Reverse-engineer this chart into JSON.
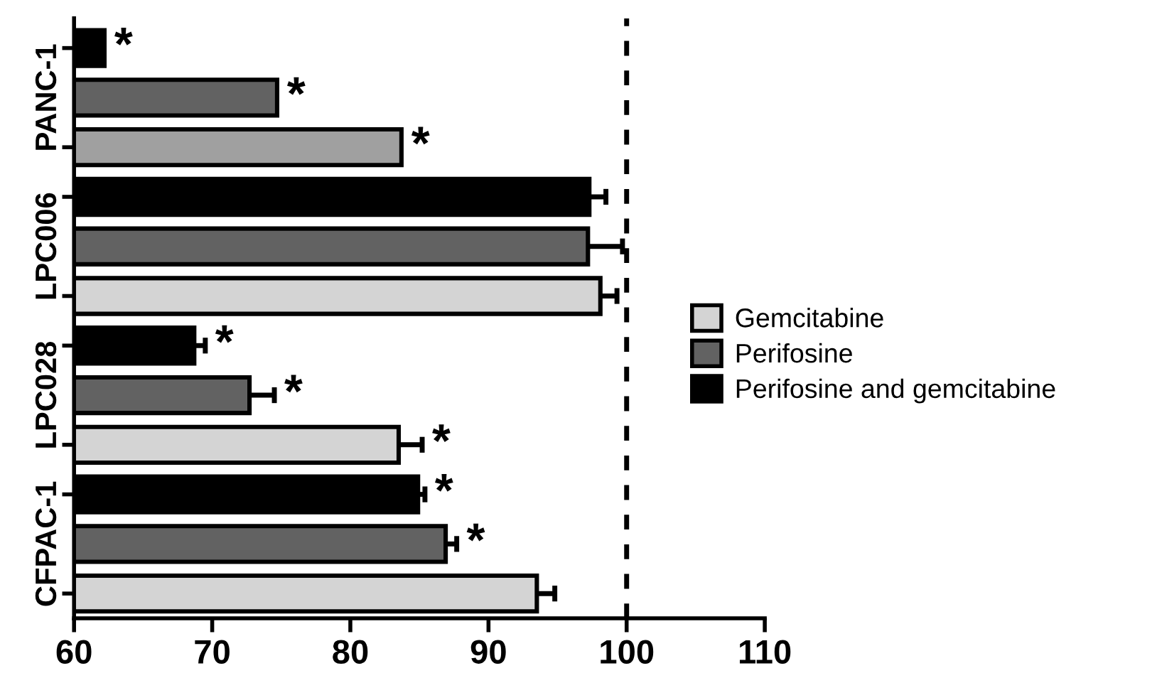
{
  "chart_data": {
    "type": "bar",
    "orientation": "horizontal",
    "categories": [
      "PANC-1",
      "LPC006",
      "LPC028",
      "CFPAC-1"
    ],
    "series": [
      {
        "name": "Gemcitabine",
        "color": "#d4d4d4",
        "colors": [
          "#a0a0a0",
          "#d4d4d4",
          "#d4d4d4",
          "#d4d4d4"
        ],
        "values": [
          83.7,
          98.1,
          83.5,
          93.5
        ],
        "errors": [
          null,
          1.2,
          1.7,
          1.3
        ],
        "value_labels": [
          "*",
          null,
          "*",
          null
        ]
      },
      {
        "name": "Perifosine",
        "color": "#626262",
        "values": [
          74.7,
          97.2,
          72.7,
          86.9
        ],
        "errors": [
          null,
          2.5,
          1.8,
          0.8
        ],
        "value_labels": [
          "*",
          null,
          "*",
          "*"
        ]
      },
      {
        "name": "Perifosine and gemcitabine",
        "color": "#000000",
        "values": [
          62.2,
          97.3,
          68.7,
          84.9
        ],
        "errors": [
          null,
          1.2,
          0.8,
          0.5
        ],
        "value_labels": [
          "*",
          null,
          "*",
          "*"
        ]
      }
    ],
    "xlim": [
      60,
      110
    ],
    "xticks": [
      60,
      70,
      80,
      90,
      100,
      110
    ],
    "ref_lines": [
      {
        "axis": "x",
        "value": 100,
        "color": "#000000",
        "line_style": "dashed"
      }
    ],
    "legend": "right",
    "grid": false
  }
}
